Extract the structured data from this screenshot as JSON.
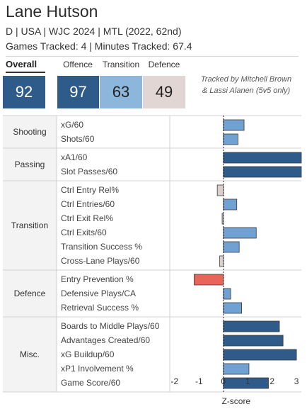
{
  "player": {
    "name": "Lane Hutson",
    "info": "D | USA | WJC 2024 | MTL (2022, 62nd)",
    "tracking": "Games Tracked: 4 | Minutes Tracked: 67.4"
  },
  "scores": {
    "overall": {
      "label": "Overall",
      "value": "92",
      "color": "#2e5b8a"
    },
    "offence": {
      "label": "Offence",
      "value": "97",
      "color": "#2e5b8a"
    },
    "transition": {
      "label": "Transition",
      "value": "63",
      "color": "#8db6dc"
    },
    "defence": {
      "label": "Defence",
      "value": "49",
      "color": "#e2d6d4"
    }
  },
  "tracked_by": [
    "Tracked by Mitchell Brown",
    "& Lassi Alanen (5v5 only)"
  ],
  "colors": {
    "strong_positive": "#2e5b8a",
    "positive": "#6fa1d2",
    "neutral": "#d9d0ce",
    "negative": "#e8655a"
  },
  "chart_data": {
    "type": "bar",
    "orientation": "horizontal",
    "xlabel": "Z-score",
    "xlim": [
      -2.2,
      3.2
    ],
    "xticks": [
      -2,
      -1,
      0,
      1,
      2,
      3
    ],
    "zero_line": "dotted",
    "groups": [
      {
        "name": "Shooting",
        "metrics": [
          {
            "label": "xG/60",
            "value": 0.85
          },
          {
            "label": "Shots/60",
            "value": 0.6
          }
        ]
      },
      {
        "name": "Passing",
        "metrics": [
          {
            "label": "xA1/60",
            "value": 3.2
          },
          {
            "label": "Slot Passes/60",
            "value": 3.2
          }
        ]
      },
      {
        "name": "Transition",
        "metrics": [
          {
            "label": "Ctrl Entry Rel%",
            "value": -0.25
          },
          {
            "label": "Ctrl Entries/60",
            "value": 0.55
          },
          {
            "label": "Ctrl Exit Rel%",
            "value": -0.05
          },
          {
            "label": "Ctrl Exits/60",
            "value": 1.35
          },
          {
            "label": "Transition Success %",
            "value": 0.65
          },
          {
            "label": "Cross-Lane Plays/60",
            "value": -0.15
          }
        ]
      },
      {
        "name": "Defence",
        "metrics": [
          {
            "label": "Entry Prevention %",
            "value": -1.2
          },
          {
            "label": "Defensive Plays/CA",
            "value": 0.3
          },
          {
            "label": "Retrieval Success %",
            "value": 0.75
          }
        ]
      },
      {
        "name": "Misc.",
        "metrics": [
          {
            "label": "Boards to Middle Plays/60",
            "value": 2.3
          },
          {
            "label": "Advantages Created/60",
            "value": 2.45
          },
          {
            "label": "xG Buildup/60",
            "value": 3.0
          },
          {
            "label": "xP1 Involvement %",
            "value": 1.05
          },
          {
            "label": "Game Score/60",
            "value": 1.85
          }
        ]
      }
    ]
  }
}
